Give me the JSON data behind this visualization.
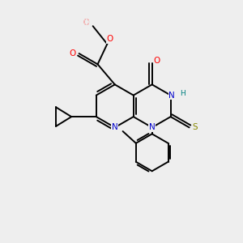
{
  "bg_color": "#eeeeee",
  "atom_colors": {
    "C": "#000000",
    "N": "#0000cc",
    "O": "#ff0000",
    "S": "#888800",
    "H": "#008080"
  },
  "figsize": [
    3.0,
    3.0
  ],
  "dpi": 100
}
